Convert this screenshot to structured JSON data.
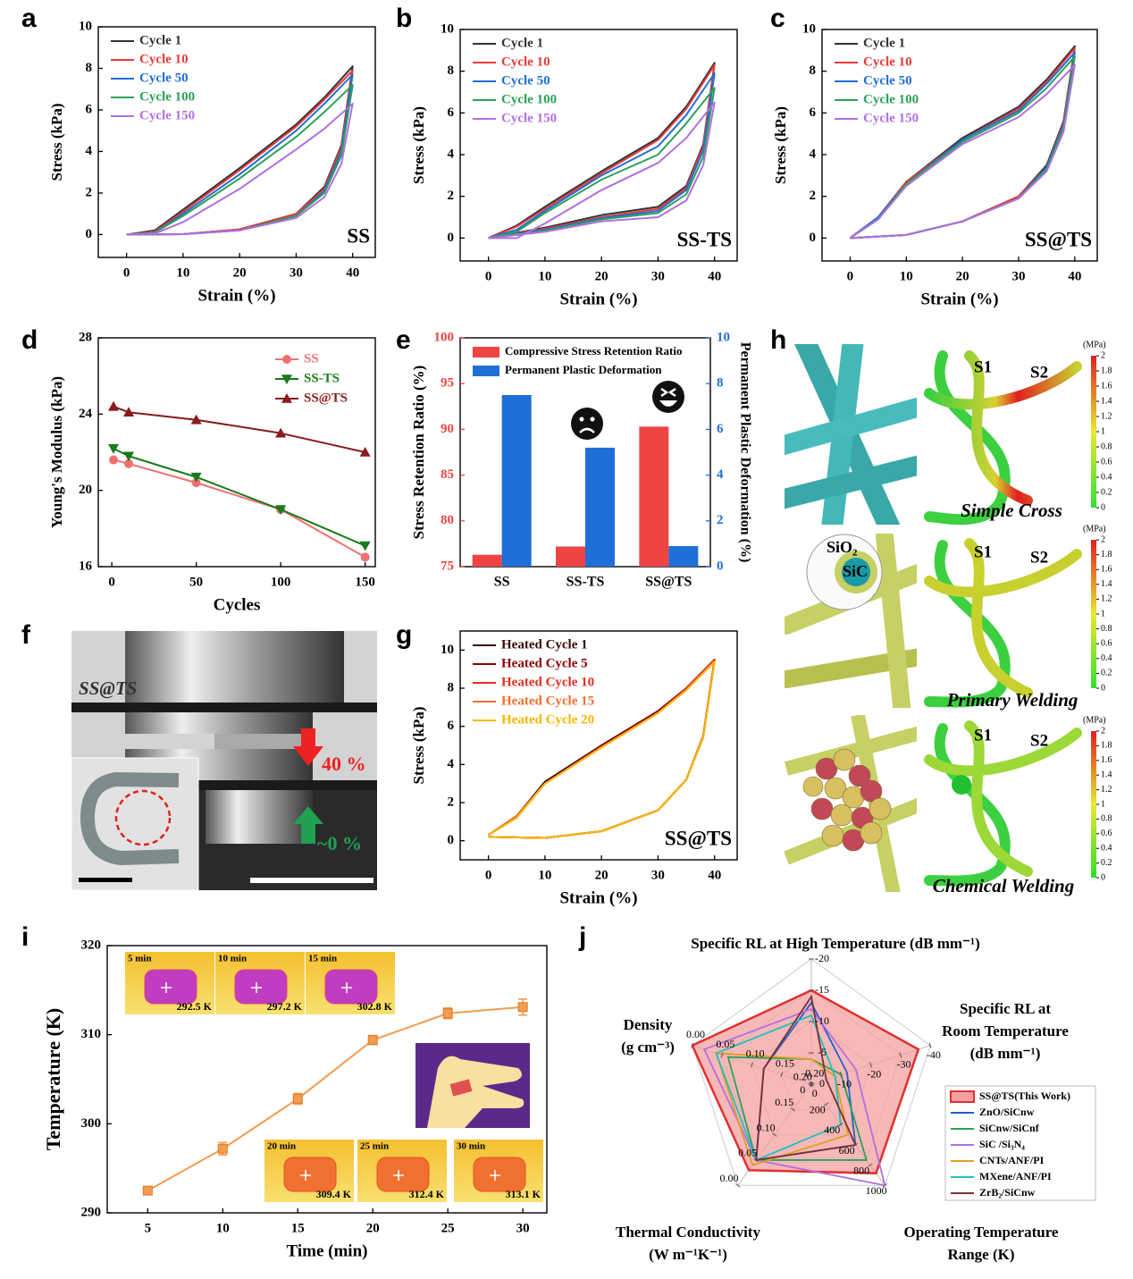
{
  "panel_labels": [
    "a",
    "b",
    "c",
    "d",
    "e",
    "f",
    "g",
    "h",
    "i",
    "j"
  ],
  "chart_data": [
    {
      "type": "line",
      "xlabel": "Strain (%)",
      "ylabel": "Stress (kPa)",
      "annotation": "SS",
      "legend": "upper left",
      "x": [
        0,
        5,
        10,
        20,
        30,
        35,
        40,
        38,
        35,
        30,
        20,
        10,
        0
      ],
      "xlim": [
        -5,
        44
      ],
      "ylim": [
        -1.1,
        10
      ],
      "xticks": [
        0,
        10,
        20,
        30,
        40
      ],
      "yticks": [
        0,
        2,
        4,
        6,
        8,
        10
      ],
      "series": [
        {
          "name": "Cycle 1",
          "color": "#333333",
          "values": [
            0,
            0.2,
            1.2,
            3.2,
            5.3,
            6.6,
            8.1,
            4.3,
            2.3,
            1.0,
            0.25,
            0.02,
            0
          ]
        },
        {
          "name": "Cycle 10",
          "color": "#e8393a",
          "values": [
            0,
            0.15,
            1.1,
            3.1,
            5.2,
            6.5,
            7.9,
            4.2,
            2.2,
            1.0,
            0.25,
            0.02,
            0
          ]
        },
        {
          "name": "Cycle 50",
          "color": "#1f6fd6",
          "values": [
            0,
            0.1,
            1.0,
            2.9,
            5.0,
            6.3,
            7.7,
            4.0,
            2.1,
            0.9,
            0.2,
            0.02,
            0
          ]
        },
        {
          "name": "Cycle 100",
          "color": "#2ca05a",
          "values": [
            0,
            0.1,
            0.9,
            2.7,
            4.7,
            5.9,
            7.2,
            3.8,
            2.0,
            0.9,
            0.2,
            0.02,
            0
          ]
        },
        {
          "name": "Cycle 150",
          "color": "#b070e0",
          "values": [
            0,
            0.05,
            0.6,
            2.2,
            4.1,
            5.1,
            6.3,
            3.4,
            1.8,
            0.8,
            0.2,
            0.02,
            0
          ]
        }
      ]
    },
    {
      "type": "line",
      "xlabel": "Strain (%)",
      "ylabel": "Stress (kPa)",
      "annotation": "SS-TS",
      "legend": "upper left",
      "x": [
        0,
        5,
        10,
        20,
        30,
        35,
        40,
        38,
        35,
        30,
        20,
        10,
        0
      ],
      "xlim": [
        -5,
        44
      ],
      "ylim": [
        -1.1,
        10
      ],
      "xticks": [
        0,
        10,
        20,
        30,
        40
      ],
      "yticks": [
        0,
        2,
        4,
        6,
        8,
        10
      ],
      "series": [
        {
          "name": "Cycle 1",
          "color": "#333333",
          "values": [
            0,
            0.6,
            1.5,
            3.2,
            4.8,
            6.3,
            8.4,
            4.5,
            2.5,
            1.5,
            1.1,
            0.5,
            0
          ]
        },
        {
          "name": "Cycle 10",
          "color": "#e8393a",
          "values": [
            0,
            0.55,
            1.4,
            3.1,
            4.7,
            6.2,
            8.3,
            4.4,
            2.4,
            1.4,
            1.0,
            0.45,
            0
          ]
        },
        {
          "name": "Cycle 50",
          "color": "#1f6fd6",
          "values": [
            0,
            0.4,
            1.3,
            3.0,
            4.4,
            5.9,
            7.9,
            4.2,
            2.3,
            1.3,
            0.95,
            0.4,
            0
          ]
        },
        {
          "name": "Cycle 100",
          "color": "#2ca05a",
          "values": [
            0,
            0.3,
            1.2,
            2.8,
            4.0,
            5.5,
            7.2,
            3.9,
            2.1,
            1.2,
            0.9,
            0.35,
            0
          ]
        },
        {
          "name": "Cycle 150",
          "color": "#b070e0",
          "values": [
            0,
            0.0,
            0.7,
            2.3,
            3.6,
            4.8,
            6.5,
            3.5,
            1.8,
            1.0,
            0.8,
            0.3,
            0
          ]
        }
      ]
    },
    {
      "type": "line",
      "xlabel": "Strain (%)",
      "ylabel": "Stress (kPa)",
      "annotation": "SS@TS",
      "legend": "upper left",
      "x": [
        0,
        5,
        10,
        20,
        30,
        35,
        40,
        38,
        35,
        30,
        20,
        10,
        0
      ],
      "xlim": [
        -5,
        44
      ],
      "ylim": [
        -1.1,
        10
      ],
      "xticks": [
        0,
        10,
        20,
        30,
        40
      ],
      "yticks": [
        0,
        2,
        4,
        6,
        8,
        10
      ],
      "series": [
        {
          "name": "Cycle 1",
          "color": "#333333",
          "values": [
            0,
            1.0,
            2.7,
            4.8,
            6.3,
            7.6,
            9.2,
            5.6,
            3.5,
            2.0,
            0.8,
            0.15,
            0
          ]
        },
        {
          "name": "Cycle 10",
          "color": "#e8393a",
          "values": [
            0,
            1.0,
            2.7,
            4.7,
            6.2,
            7.5,
            9.1,
            5.5,
            3.4,
            2.0,
            0.8,
            0.15,
            0
          ]
        },
        {
          "name": "Cycle 50",
          "color": "#1f6fd6",
          "values": [
            0,
            1.0,
            2.6,
            4.7,
            6.1,
            7.4,
            8.9,
            5.4,
            3.4,
            1.9,
            0.8,
            0.15,
            0
          ]
        },
        {
          "name": "Cycle 100",
          "color": "#2ca05a",
          "values": [
            0,
            0.9,
            2.6,
            4.6,
            6.0,
            7.2,
            8.7,
            5.3,
            3.3,
            1.9,
            0.8,
            0.15,
            0
          ]
        },
        {
          "name": "Cycle 150",
          "color": "#b070e0",
          "values": [
            0,
            0.9,
            2.5,
            4.5,
            5.8,
            6.9,
            8.3,
            5.1,
            3.2,
            1.9,
            0.8,
            0.15,
            0
          ]
        }
      ]
    },
    {
      "type": "line",
      "xlabel": "Cycles",
      "ylabel": "Young's Modulus (kPa)",
      "legend": "upper right",
      "x": [
        1,
        10,
        50,
        100,
        150
      ],
      "xlim": [
        -8,
        156
      ],
      "ylim": [
        16,
        28
      ],
      "xticks": [
        0,
        50,
        100,
        150
      ],
      "yticks": [
        16,
        20,
        24,
        28
      ],
      "series": [
        {
          "name": "SS",
          "color": "#f07070",
          "marker": "circle",
          "values": [
            21.6,
            21.4,
            20.4,
            19.0,
            16.5
          ]
        },
        {
          "name": "SS-TS",
          "color": "#1a7a1a",
          "marker": "triangle-down",
          "values": [
            22.2,
            21.8,
            20.7,
            19.0,
            17.1
          ]
        },
        {
          "name": "SS@TS",
          "color": "#8b1a1a",
          "marker": "triangle-up",
          "values": [
            24.4,
            24.1,
            23.7,
            23.0,
            22.0
          ]
        }
      ]
    },
    {
      "type": "bar",
      "ylabel": "Stress Retention Ratio (%)",
      "y2label": "Permanent Plastic Deformation (%)",
      "legend": "upper left",
      "categories": [
        "SS",
        "SS-TS",
        "SS@TS"
      ],
      "ylim": [
        75,
        100
      ],
      "yticks": [
        75,
        80,
        85,
        90,
        95,
        100
      ],
      "y2lim": [
        0,
        10
      ],
      "y2ticks": [
        0,
        2,
        4,
        6,
        8,
        10
      ],
      "series": [
        {
          "name": "Compressive Stress Retention Ratio",
          "color": "#ee4444",
          "values": [
            76.3,
            77.2,
            90.3
          ]
        },
        {
          "name": "Permanent Plastic Deformation",
          "color": "#1f6fd6",
          "axis": "y2",
          "values": [
            7.5,
            5.2,
            0.9
          ]
        }
      ]
    },
    {
      "type": "line",
      "xlabel": "Strain (%)",
      "ylabel": "Stress (kPa)",
      "annotation": "SS@TS",
      "legend": "upper left",
      "x": [
        0,
        5,
        10,
        20,
        30,
        35,
        40,
        38,
        35,
        30,
        20,
        10,
        0
      ],
      "xlim": [
        -5,
        44
      ],
      "ylim": [
        -1,
        11
      ],
      "xticks": [
        0,
        10,
        20,
        30,
        40
      ],
      "yticks": [
        0,
        2,
        4,
        6,
        8,
        10
      ],
      "series": [
        {
          "name": "Heated Cycle 1",
          "color": "#3b0a0a",
          "values": [
            0.3,
            1.3,
            3.1,
            5.0,
            6.8,
            8.0,
            9.5,
            5.5,
            3.2,
            1.6,
            0.5,
            0.15,
            0.2
          ]
        },
        {
          "name": "Heated Cycle 5",
          "color": "#8b0000",
          "values": [
            0.3,
            1.3,
            3.0,
            5.0,
            6.8,
            8.0,
            9.5,
            5.5,
            3.2,
            1.6,
            0.5,
            0.15,
            0.2
          ]
        },
        {
          "name": "Heated Cycle 10",
          "color": "#e03020",
          "values": [
            0.3,
            1.3,
            3.0,
            4.9,
            6.7,
            8.0,
            9.5,
            5.5,
            3.2,
            1.6,
            0.5,
            0.15,
            0.2
          ]
        },
        {
          "name": "Heated Cycle 15",
          "color": "#f07030",
          "values": [
            0.3,
            1.3,
            3.0,
            4.9,
            6.7,
            7.9,
            9.4,
            5.5,
            3.2,
            1.6,
            0.5,
            0.15,
            0.2
          ]
        },
        {
          "name": "Heated Cycle 20",
          "color": "#f5b800",
          "values": [
            0.3,
            1.2,
            3.0,
            4.9,
            6.7,
            7.9,
            9.4,
            5.4,
            3.2,
            1.6,
            0.5,
            0.15,
            0.2
          ]
        }
      ]
    },
    {
      "type": "line",
      "xlabel": "Time (min)",
      "ylabel": "Temperature (K)",
      "color": "#f39c4f",
      "marker": "square",
      "x": [
        5,
        10,
        15,
        20,
        25,
        30
      ],
      "values": [
        292.5,
        297.2,
        302.8,
        309.4,
        312.4,
        313.1
      ],
      "errors": [
        0.4,
        0.7,
        0.6,
        0.5,
        0.6,
        0.9
      ],
      "xlim": [
        2.3,
        31.6
      ],
      "ylim": [
        290,
        320
      ],
      "xticks": [
        5,
        10,
        15,
        20,
        25,
        30
      ],
      "yticks": [
        290,
        300,
        310,
        320
      ],
      "insets": [
        {
          "time": "5 min",
          "temp": "292.5 K"
        },
        {
          "time": "10 min",
          "temp": "297.2 K"
        },
        {
          "time": "15 min",
          "temp": "302.8 K"
        },
        {
          "time": "20 min",
          "temp": "309.4 K"
        },
        {
          "time": "25 min",
          "temp": "312.4 K"
        },
        {
          "time": "30 min",
          "temp": "313.1 K"
        }
      ]
    },
    {
      "type": "radar",
      "axes": [
        {
          "label": [
            "Specific RL at High Temperature (dB mm⁻¹)"
          ],
          "lim": [
            0,
            -20
          ],
          "ticks": [
            0,
            -5,
            -10,
            -15,
            -20
          ]
        },
        {
          "label": [
            "Specific RL at",
            "Room Temperature",
            "(dB mm⁻¹)"
          ],
          "lim": [
            0,
            -40
          ],
          "ticks": [
            0,
            -10,
            -20,
            -30,
            -40
          ]
        },
        {
          "label": [
            "Operating Temperature",
            "Range (K)"
          ],
          "lim": [
            0,
            1000
          ],
          "ticks": [
            0,
            200,
            400,
            600,
            800,
            1000
          ]
        },
        {
          "label": [
            "Thermal Conductivity",
            "(W m⁻¹K⁻¹)"
          ],
          "lim": [
            0.2,
            0
          ],
          "ticks": [
            {
              "value": 0.2,
              "label": "0.20"
            },
            0.15,
            {
              "value": 0.1,
              "label": "0.10"
            },
            0.05,
            {
              "value": 0,
              "label": "0.00"
            }
          ]
        },
        {
          "label": [
            "Density",
            "(g cm⁻³)"
          ],
          "lim": [
            0.2,
            0
          ],
          "ticks": [
            {
              "value": 0.2,
              "label": "0.20"
            },
            0.15,
            {
              "value": 0.1,
              "label": "0.10"
            },
            0.05,
            {
              "value": 0,
              "label": "0.00"
            }
          ]
        }
      ],
      "series": [
        {
          "name": "SS@TS(This Work)",
          "color": "#e03030",
          "values": [
            -15,
            -36,
            880,
            0.03,
            0
          ]
        },
        {
          "name": "ZnO/SiCnw",
          "color": "#1f5fd0",
          "values": [
            -13,
            -12,
            600,
            0.05,
            0.12
          ]
        },
        {
          "name": "SiCnw/SiCnf",
          "color": "#2ca05a",
          "values": [
            -4,
            -10,
            750,
            0.05,
            0.06
          ]
        },
        {
          "name": "SiC /Si₃N₄",
          "color": "#b070e0",
          "values": [
            -12,
            -15,
            1000,
            0.05,
            0.02
          ]
        },
        {
          "name": "CNTs/ANF/PI",
          "color": "#e0a020",
          "values": [
            -4,
            -8,
            500,
            0.04,
            0.04
          ]
        },
        {
          "name": "MXene/ANF/PI",
          "color": "#20c0c0",
          "values": [
            -11,
            -8,
            400,
            0.05,
            0.04
          ]
        },
        {
          "name": "ZrB₂/SiCnw",
          "color": "#7a3030",
          "values": [
            -14,
            -5,
            600,
            0.05,
            0.12
          ]
        }
      ]
    }
  ],
  "panel_f": {
    "sample": "SS@TS",
    "compressed": "40 %",
    "released": "~0 %"
  },
  "panel_h": {
    "colorbar": {
      "label": "(MPa)",
      "lim": [
        0,
        2
      ],
      "ticks": [
        0,
        0.2,
        0.4,
        0.6,
        0.8,
        1,
        1.2,
        1.4,
        1.6,
        1.8,
        2
      ]
    },
    "rows": [
      {
        "caption": "Simple Cross",
        "s1": "S1",
        "s2": "S2"
      },
      {
        "caption": "Primary Welding",
        "s1": "S1",
        "s2": "S2",
        "shell": "SiO₂",
        "core": "SiC"
      },
      {
        "caption": "Chemical Welding",
        "s1": "S1",
        "s2": "S2"
      }
    ]
  }
}
